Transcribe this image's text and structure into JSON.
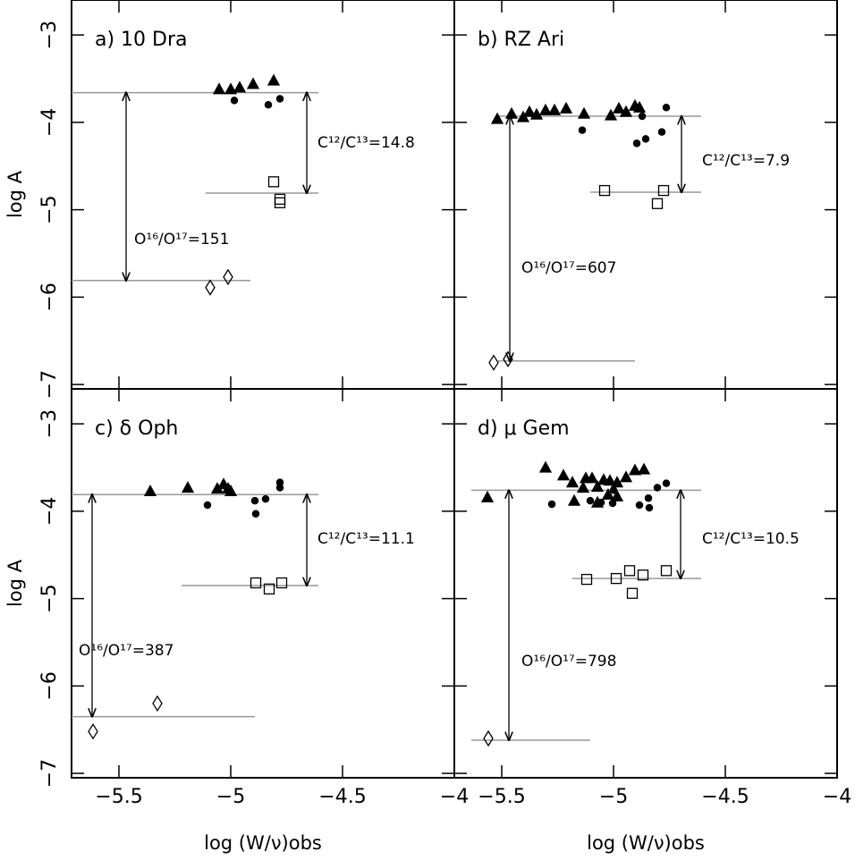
{
  "chart_data": [
    {
      "type": "scatter",
      "title": "a) 10 Dra",
      "ylabel": "log A",
      "xlim": [
        -5.712,
        -4
      ],
      "ylim": [
        -7.05,
        -2.6
      ],
      "xticks": [
        -5.5,
        -5,
        -4.5,
        -4
      ],
      "yticks": [
        {
          "value": -3,
          "label": "−3"
        },
        {
          "value": -4,
          "label": "−4"
        },
        {
          "value": -5,
          "label": "−5"
        },
        {
          "value": -6,
          "label": "−6"
        },
        {
          "value": -7,
          "label": "−7"
        }
      ],
      "series": [
        {
          "marker": "triangle",
          "filled": true,
          "color": "#000000",
          "x": [
            -5.052,
            -5.0,
            -4.96,
            -4.9,
            -4.808
          ],
          "y": [
            -3.62,
            -3.62,
            -3.6,
            -3.56,
            -3.52
          ]
        },
        {
          "marker": "circle",
          "filled": true,
          "color": "#000000",
          "x": [
            -4.984,
            -4.832,
            -4.78
          ],
          "y": [
            -3.75,
            -3.8,
            -3.73
          ]
        },
        {
          "marker": "square",
          "filled": false,
          "color": "#000000",
          "x": [
            -4.808,
            -4.78,
            -4.78
          ],
          "y": [
            -4.68,
            -4.88,
            -4.92
          ]
        },
        {
          "marker": "diamond",
          "filled": false,
          "color": "#000000",
          "x": [
            -5.092,
            -5.012
          ],
          "y": [
            -5.89,
            -5.77
          ]
        }
      ],
      "hlines": [
        {
          "x": [
            -5.712,
            -4.608
          ],
          "y": -3.66
        },
        {
          "x": [
            -5.112,
            -4.608
          ],
          "y": -4.81
        },
        {
          "x": [
            -5.712,
            -4.912
          ],
          "y": -5.81
        }
      ],
      "line_color": "#999999",
      "arrows": [
        {
          "x": -5.468,
          "y": [
            -3.66,
            -5.81
          ]
        },
        {
          "x": -4.66,
          "y": [
            -3.66,
            -4.81
          ]
        }
      ],
      "annotations": [
        "O¹⁶/O¹⁷=151",
        "C¹²/C¹³=14.8"
      ]
    },
    {
      "type": "scatter",
      "title": "b) RZ Ari",
      "xlim": [
        -5.712,
        -4
      ],
      "ylim": [
        -7.05,
        -2.6
      ],
      "xticks": [
        -5.5,
        -5,
        -4.5,
        -4
      ],
      "yticks": [
        -3,
        -4,
        -5,
        -6,
        -7
      ],
      "series": [
        {
          "marker": "triangle",
          "filled": true,
          "color": "#000000",
          "x": [
            -5.52,
            -5.456,
            -5.404,
            -5.376,
            -5.344,
            -5.304,
            -5.264,
            -5.212,
            -5.132,
            -5.012,
            -4.976,
            -4.944,
            -4.904,
            -4.884
          ],
          "y": [
            -3.96,
            -3.9,
            -3.94,
            -3.88,
            -3.91,
            -3.86,
            -3.86,
            -3.84,
            -3.9,
            -3.92,
            -3.84,
            -3.88,
            -3.81,
            -3.83
          ]
        },
        {
          "marker": "circle",
          "filled": true,
          "color": "#000000",
          "x": [
            -5.14,
            -4.896,
            -4.856,
            -4.784,
            -4.764,
            -4.872
          ],
          "y": [
            -4.09,
            -4.24,
            -4.19,
            -4.11,
            -3.83,
            -3.93
          ]
        },
        {
          "marker": "square",
          "filled": false,
          "color": "#000000",
          "x": [
            -5.04,
            -4.776,
            -4.804
          ],
          "y": [
            -4.78,
            -4.78,
            -4.93
          ]
        },
        {
          "marker": "diamond",
          "filled": false,
          "color": "#000000",
          "x": [
            -5.536,
            -5.472
          ],
          "y": [
            -6.75,
            -6.71
          ]
        }
      ],
      "hlines": [
        {
          "x": [
            -5.516,
            -4.608
          ],
          "y": -3.93
        },
        {
          "x": [
            -5.104,
            -4.608
          ],
          "y": -4.8
        },
        {
          "x": [
            -5.516,
            -4.904
          ],
          "y": -6.73
        }
      ],
      "line_color": "#999999",
      "arrows": [
        {
          "x": -5.464,
          "y": [
            -3.93,
            -6.73
          ]
        },
        {
          "x": -4.696,
          "y": [
            -3.93,
            -4.8
          ]
        }
      ],
      "annotations": [
        "O¹⁶/O¹⁷=607",
        "C¹²/C¹³=7.9"
      ]
    },
    {
      "type": "scatter",
      "title": "c) δ Oph",
      "ylabel": "log A",
      "xlabel": "log (W/ν)obs",
      "xlim": [
        -5.712,
        -4
      ],
      "ylim": [
        -7.05,
        -2.6
      ],
      "xticks": [
        {
          "value": -5.5,
          "label": "−5.5"
        },
        {
          "value": -5,
          "label": "−5"
        },
        {
          "value": -4.5,
          "label": "−4.5"
        },
        {
          "value": -4,
          "label": "−4"
        }
      ],
      "yticks": [
        {
          "value": -3,
          "label": "−3"
        },
        {
          "value": -4,
          "label": "−4"
        },
        {
          "value": -5,
          "label": "−5"
        },
        {
          "value": -6,
          "label": "−6"
        },
        {
          "value": -7,
          "label": "−7"
        }
      ],
      "series": [
        {
          "marker": "triangle",
          "filled": true,
          "color": "#000000",
          "x": [
            -5.36,
            -5.192,
            -5.06,
            -5.032,
            -5.012,
            -5.0
          ],
          "y": [
            -3.77,
            -3.73,
            -3.74,
            -3.69,
            -3.74,
            -3.77
          ]
        },
        {
          "marker": "circle",
          "filled": true,
          "color": "#000000",
          "x": [
            -5.104,
            -4.892,
            -4.888,
            -4.844,
            -4.78,
            -4.78
          ],
          "y": [
            -3.93,
            -3.88,
            -4.03,
            -3.86,
            -3.67,
            -3.73
          ]
        },
        {
          "marker": "square",
          "filled": false,
          "color": "#000000",
          "x": [
            -4.888,
            -4.828,
            -4.772
          ],
          "y": [
            -4.82,
            -4.89,
            -4.82
          ]
        },
        {
          "marker": "diamond",
          "filled": false,
          "color": "#000000",
          "x": [
            -5.616,
            -5.328
          ],
          "y": [
            -6.52,
            -6.2
          ]
        }
      ],
      "hlines": [
        {
          "x": [
            -5.712,
            -4.608
          ],
          "y": -3.81
        },
        {
          "x": [
            -5.22,
            -4.608
          ],
          "y": -4.85
        },
        {
          "x": [
            -5.712,
            -4.892
          ],
          "y": -6.35
        }
      ],
      "line_color": "#999999",
      "arrows": [
        {
          "x": -5.62,
          "y": [
            -3.81,
            -6.35
          ]
        },
        {
          "x": -4.66,
          "y": [
            -3.81,
            -4.85
          ]
        }
      ],
      "annotations": [
        "O¹⁶/O¹⁷=387",
        "C¹²/C¹³=11.1"
      ]
    },
    {
      "type": "scatter",
      "title": "d) μ Gem",
      "xlabel": "log (W/ν)obs",
      "xlim": [
        -5.712,
        -4
      ],
      "ylim": [
        -7.05,
        -2.6
      ],
      "xticks": [
        {
          "value": -5.5,
          "label": "−5.5"
        },
        {
          "value": -5,
          "label": "−5"
        },
        {
          "value": -4.5,
          "label": "−4.5"
        },
        {
          "value": -4,
          "label": "−4"
        }
      ],
      "yticks": [
        -3,
        -4,
        -5,
        -6,
        -7
      ],
      "series": [
        {
          "marker": "triangle",
          "filled": true,
          "color": "#000000",
          "x": [
            -5.564,
            -5.304,
            -5.224,
            -5.184,
            -5.136,
            -5.124,
            -5.096,
            -5.072,
            -5.044,
            -5.016,
            -4.984,
            -4.944,
            -4.904,
            -4.864,
            -5.176,
            -5.072,
            -4.984,
            -5.024
          ],
          "y": [
            -3.84,
            -3.5,
            -3.59,
            -3.67,
            -3.73,
            -3.62,
            -3.62,
            -3.72,
            -3.64,
            -3.65,
            -3.67,
            -3.61,
            -3.53,
            -3.52,
            -3.88,
            -3.9,
            -3.83,
            -3.81
          ]
        },
        {
          "marker": "circle",
          "filled": true,
          "color": "#000000",
          "x": [
            -5.276,
            -5.104,
            -5.056,
            -5.004,
            -4.884,
            -4.844,
            -4.84,
            -4.804,
            -4.764,
            -5.0
          ],
          "y": [
            -3.92,
            -3.88,
            -3.9,
            -3.91,
            -3.93,
            -3.85,
            -3.96,
            -3.73,
            -3.68,
            -3.76
          ]
        },
        {
          "marker": "square",
          "filled": false,
          "color": "#000000",
          "x": [
            -5.12,
            -4.988,
            -4.928,
            -4.868,
            -4.916,
            -4.764
          ],
          "y": [
            -4.78,
            -4.77,
            -4.68,
            -4.73,
            -4.94,
            -4.68
          ]
        },
        {
          "marker": "diamond",
          "filled": false,
          "color": "#000000",
          "x": [
            -5.56
          ],
          "y": [
            -6.6
          ]
        }
      ],
      "hlines": [
        {
          "x": [
            -5.636,
            -4.608
          ],
          "y": -3.76
        },
        {
          "x": [
            -5.184,
            -4.608
          ],
          "y": -4.77
        },
        {
          "x": [
            -5.636,
            -5.104
          ],
          "y": -6.62
        }
      ],
      "line_color": "#999999",
      "arrows": [
        {
          "x": -5.468,
          "y": [
            -3.76,
            -6.62
          ]
        },
        {
          "x": -4.7,
          "y": [
            -3.76,
            -4.77
          ]
        }
      ],
      "annotations": [
        "O¹⁶/O¹⁷=798",
        "C¹²/C¹³=10.5"
      ]
    }
  ]
}
